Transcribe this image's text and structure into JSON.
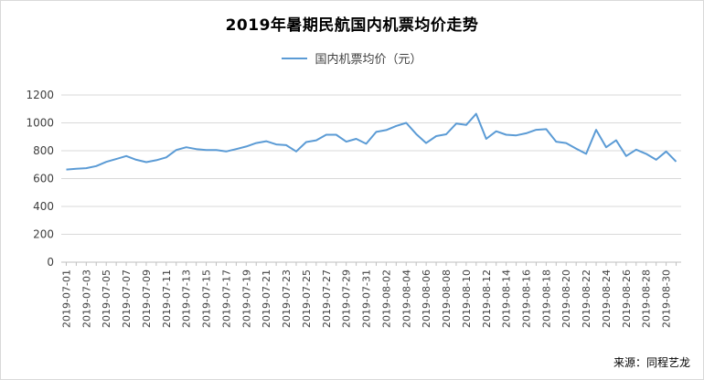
{
  "title": "2019年暑期民航国内机票均价走势",
  "source": "来源：同程艺龙",
  "chart_data": {
    "type": "line",
    "title": "2019年暑期民航国内机票均价走势",
    "xlabel": "",
    "ylabel": "",
    "ylim": [
      0,
      1200
    ],
    "yticks": [
      0,
      200,
      400,
      600,
      800,
      1000,
      1200
    ],
    "grid": true,
    "legend_position": "top-center",
    "x": [
      "2019-07-01",
      "2019-07-02",
      "2019-07-03",
      "2019-07-04",
      "2019-07-05",
      "2019-07-06",
      "2019-07-07",
      "2019-07-08",
      "2019-07-09",
      "2019-07-10",
      "2019-07-11",
      "2019-07-12",
      "2019-07-13",
      "2019-07-14",
      "2019-07-15",
      "2019-07-16",
      "2019-07-17",
      "2019-07-18",
      "2019-07-19",
      "2019-07-20",
      "2019-07-21",
      "2019-07-22",
      "2019-07-23",
      "2019-07-24",
      "2019-07-25",
      "2019-07-26",
      "2019-07-27",
      "2019-07-28",
      "2019-07-29",
      "2019-07-30",
      "2019-07-31",
      "2019-08-01",
      "2019-08-02",
      "2019-08-03",
      "2019-08-04",
      "2019-08-05",
      "2019-08-06",
      "2019-08-07",
      "2019-08-08",
      "2019-08-09",
      "2019-08-10",
      "2019-08-11",
      "2019-08-12",
      "2019-08-13",
      "2019-08-14",
      "2019-08-15",
      "2019-08-16",
      "2019-08-17",
      "2019-08-18",
      "2019-08-19",
      "2019-08-20",
      "2019-08-21",
      "2019-08-22",
      "2019-08-23",
      "2019-08-24",
      "2019-08-25",
      "2019-08-26",
      "2019-08-27",
      "2019-08-28",
      "2019-08-29",
      "2019-08-30",
      "2019-08-31"
    ],
    "xtick_labels": [
      "2019-07-01",
      "2019-07-03",
      "2019-07-05",
      "2019-07-07",
      "2019-07-09",
      "2019-07-11",
      "2019-07-13",
      "2019-07-15",
      "2019-07-17",
      "2019-07-19",
      "2019-07-21",
      "2019-07-23",
      "2019-07-25",
      "2019-07-27",
      "2019-07-29",
      "2019-07-31",
      "2019-08-02",
      "2019-08-04",
      "2019-08-06",
      "2019-08-08",
      "2019-08-10",
      "2019-08-12",
      "2019-08-14",
      "2019-08-16",
      "2019-08-18",
      "2019-08-20",
      "2019-08-22",
      "2019-08-24",
      "2019-08-26",
      "2019-08-28",
      "2019-08-30"
    ],
    "series": [
      {
        "name": "国内机票均价（元）",
        "color": "#5b9bd5",
        "values": [
          665,
          670,
          675,
          690,
          720,
          740,
          762,
          735,
          718,
          732,
          752,
          805,
          825,
          812,
          805,
          805,
          795,
          812,
          830,
          855,
          868,
          845,
          840,
          795,
          862,
          875,
          915,
          915,
          865,
          885,
          850,
          935,
          948,
          978,
          1000,
          920,
          855,
          905,
          918,
          995,
          985,
          1065,
          885,
          940,
          915,
          910,
          925,
          950,
          955,
          865,
          855,
          815,
          778,
          950,
          825,
          875,
          762,
          808,
          778,
          735,
          795,
          722
        ]
      }
    ]
  }
}
